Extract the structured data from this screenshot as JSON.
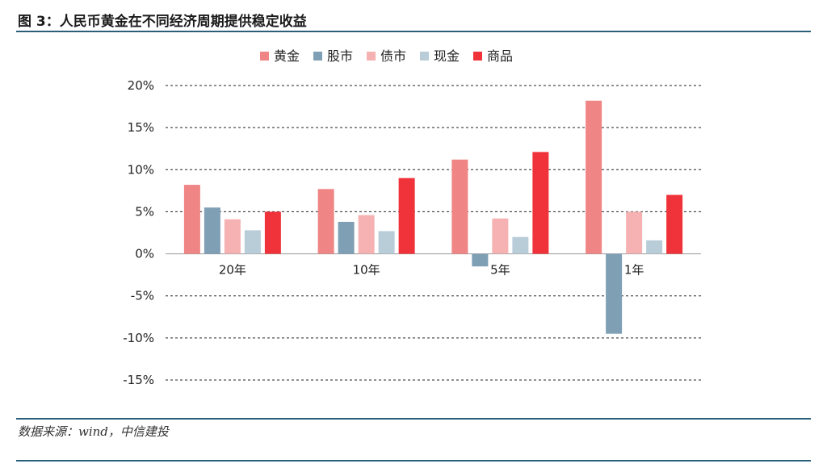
{
  "figure": {
    "title": "图 3：人民币黄金在不同经济周期提供稳定收益",
    "source": "数据来源：wind，中信建投"
  },
  "chart_data": {
    "type": "bar",
    "title": "",
    "xlabel": "",
    "ylabel": "",
    "categories": [
      "20年",
      "10年",
      "5年",
      "1年"
    ],
    "series": [
      {
        "name": "黄金",
        "color": "#f08585",
        "values": [
          8.2,
          7.7,
          11.2,
          18.2
        ]
      },
      {
        "name": "股市",
        "color": "#7f9fb5",
        "values": [
          5.5,
          3.8,
          -1.5,
          -9.5
        ]
      },
      {
        "name": "债市",
        "color": "#f6b2b2",
        "values": [
          4.1,
          4.6,
          4.2,
          5.0
        ]
      },
      {
        "name": "现金",
        "color": "#b9cdd9",
        "values": [
          2.8,
          2.7,
          2.0,
          1.6
        ]
      },
      {
        "name": "商品",
        "color": "#f0323a",
        "values": [
          5.0,
          9.0,
          12.1,
          7.0
        ]
      }
    ],
    "ylim": [
      -15,
      20
    ],
    "y_ticks": [
      20,
      15,
      10,
      5,
      0,
      -5,
      -10,
      -15
    ],
    "y_tick_labels": [
      "20%",
      "15%",
      "10%",
      "5%",
      "0%",
      "-5%",
      "-10%",
      "-15%"
    ],
    "grid": "dashed horizontal",
    "legend": "top-center"
  }
}
